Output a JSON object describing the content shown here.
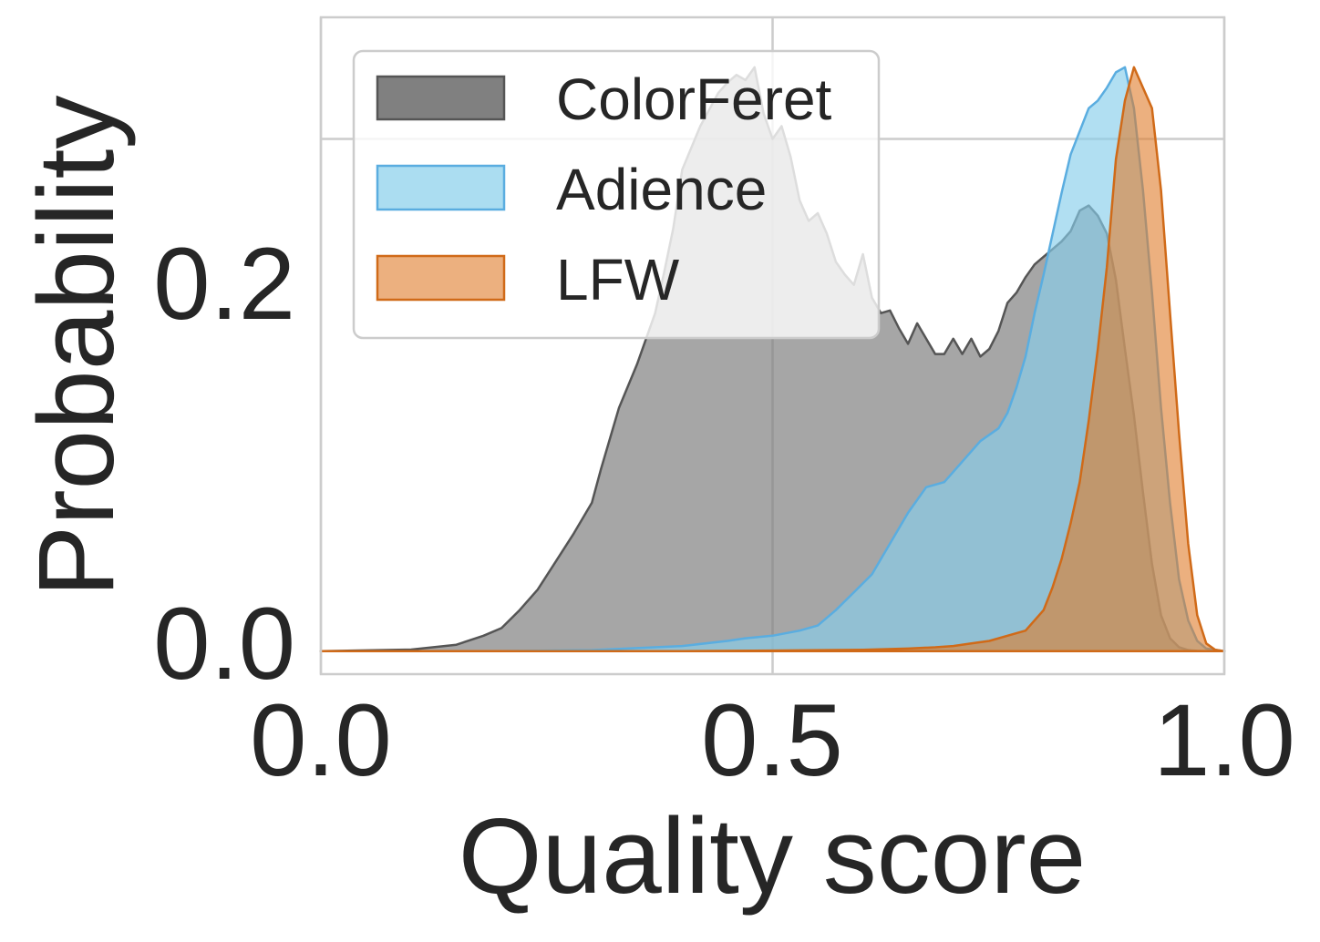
{
  "chart_data": {
    "type": "area",
    "xlabel": "Quality score",
    "ylabel": "Probability",
    "xlim": [
      0.0,
      1.0
    ],
    "ylim": [
      -0.009,
      0.2475
    ],
    "xticks": [
      0.0,
      0.5,
      1.0
    ],
    "xtick_labels": [
      "0.0",
      "0.5",
      "1.0"
    ],
    "yticks": [
      0.0,
      0.2
    ],
    "ytick_labels": [
      "0.0",
      "0.2"
    ],
    "grid": true,
    "legend_position": "upper-left",
    "series": [
      {
        "name": "ColorFeret",
        "color": "#808080",
        "edge": "#555555",
        "x": [
          0.0,
          0.05,
          0.1,
          0.15,
          0.18,
          0.2,
          0.22,
          0.24,
          0.26,
          0.28,
          0.3,
          0.31,
          0.32,
          0.33,
          0.35,
          0.37,
          0.38,
          0.39,
          0.4,
          0.42,
          0.44,
          0.45,
          0.46,
          0.47,
          0.48,
          0.49,
          0.5,
          0.51,
          0.52,
          0.53,
          0.54,
          0.55,
          0.56,
          0.57,
          0.58,
          0.59,
          0.6,
          0.61,
          0.62,
          0.63,
          0.64,
          0.65,
          0.66,
          0.67,
          0.68,
          0.69,
          0.7,
          0.71,
          0.72,
          0.73,
          0.74,
          0.75,
          0.76,
          0.77,
          0.78,
          0.79,
          0.8,
          0.81,
          0.82,
          0.83,
          0.84,
          0.85,
          0.86,
          0.87,
          0.88,
          0.89,
          0.9,
          0.91,
          0.92,
          0.93,
          0.94,
          0.95,
          0.96,
          0.97,
          0.98,
          0.99,
          1.0
        ],
        "y": [
          0.0,
          0.0003,
          0.0006,
          0.0025,
          0.006,
          0.009,
          0.016,
          0.024,
          0.035,
          0.046,
          0.058,
          0.071,
          0.083,
          0.095,
          0.112,
          0.132,
          0.148,
          0.165,
          0.188,
          0.205,
          0.218,
          0.222,
          0.225,
          0.223,
          0.228,
          0.21,
          0.2,
          0.205,
          0.193,
          0.176,
          0.168,
          0.171,
          0.163,
          0.152,
          0.147,
          0.143,
          0.155,
          0.138,
          0.132,
          0.133,
          0.126,
          0.12,
          0.128,
          0.122,
          0.116,
          0.116,
          0.122,
          0.116,
          0.122,
          0.115,
          0.118,
          0.125,
          0.136,
          0.14,
          0.146,
          0.151,
          0.154,
          0.157,
          0.16,
          0.164,
          0.172,
          0.174,
          0.17,
          0.163,
          0.145,
          0.118,
          0.092,
          0.062,
          0.034,
          0.014,
          0.005,
          0.0015,
          0.0004,
          0.0001,
          0.0,
          0.0,
          0.0
        ]
      },
      {
        "name": "Adience",
        "color": "#87ceeb",
        "edge": "#5aade0",
        "x": [
          0.0,
          0.1,
          0.2,
          0.3,
          0.4,
          0.45,
          0.47,
          0.5,
          0.53,
          0.55,
          0.57,
          0.59,
          0.61,
          0.63,
          0.65,
          0.67,
          0.69,
          0.71,
          0.73,
          0.75,
          0.76,
          0.77,
          0.78,
          0.79,
          0.8,
          0.81,
          0.82,
          0.83,
          0.84,
          0.85,
          0.86,
          0.87,
          0.88,
          0.89,
          0.9,
          0.91,
          0.92,
          0.93,
          0.94,
          0.95,
          0.96,
          0.97,
          0.98,
          1.0
        ],
        "y": [
          0.0,
          0.0,
          0.0,
          0.0004,
          0.002,
          0.004,
          0.005,
          0.006,
          0.008,
          0.01,
          0.016,
          0.023,
          0.03,
          0.042,
          0.054,
          0.064,
          0.066,
          0.074,
          0.082,
          0.087,
          0.093,
          0.103,
          0.115,
          0.132,
          0.147,
          0.163,
          0.179,
          0.194,
          0.203,
          0.212,
          0.215,
          0.22,
          0.226,
          0.228,
          0.212,
          0.18,
          0.14,
          0.095,
          0.058,
          0.028,
          0.012,
          0.004,
          0.001,
          0.0
        ]
      },
      {
        "name": "LFW",
        "color": "#e07b2a",
        "edge": "#d06a18",
        "x": [
          0.0,
          0.2,
          0.4,
          0.5,
          0.6,
          0.65,
          0.68,
          0.7,
          0.72,
          0.74,
          0.76,
          0.78,
          0.8,
          0.81,
          0.82,
          0.83,
          0.84,
          0.85,
          0.86,
          0.87,
          0.88,
          0.89,
          0.9,
          0.91,
          0.92,
          0.93,
          0.94,
          0.95,
          0.96,
          0.97,
          0.98,
          0.99,
          1.0
        ],
        "y": [
          0.0,
          0.0,
          0.0,
          0.0002,
          0.0005,
          0.001,
          0.0015,
          0.002,
          0.003,
          0.004,
          0.006,
          0.008,
          0.016,
          0.025,
          0.036,
          0.05,
          0.066,
          0.09,
          0.118,
          0.15,
          0.192,
          0.215,
          0.228,
          0.22,
          0.212,
          0.18,
          0.132,
          0.085,
          0.042,
          0.014,
          0.003,
          0.0005,
          0.0
        ]
      }
    ]
  }
}
